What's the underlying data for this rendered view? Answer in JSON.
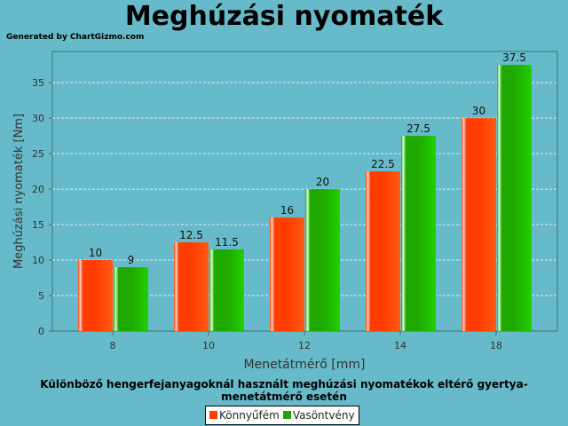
{
  "chart_data": {
    "type": "bar",
    "title": "Meghúzási nyomaték",
    "generated_by": "Generated by ChartGizmo.com",
    "xlabel": "Menetátmérő [mm]",
    "ylabel": "Meghúzási nyomaték [Nm]",
    "caption": "Különböző hengerfejanyagoknál használt meghúzási nyomatékok eltérő gyertya-menetátmérő esetén",
    "categories": [
      "8",
      "10",
      "12",
      "14",
      "18"
    ],
    "series": [
      {
        "name": "Könnyűfém",
        "color": "#ff3c00",
        "values": [
          10,
          12.5,
          16,
          22.5,
          30
        ]
      },
      {
        "name": "Vasöntvény",
        "color": "#1ea800",
        "values": [
          9,
          11.5,
          20,
          27.5,
          37.5
        ]
      }
    ],
    "yticks": [
      0,
      5,
      10,
      15,
      20,
      25,
      30,
      35
    ],
    "ylim": [
      0,
      39.4
    ],
    "grid": true,
    "legend": "bottom"
  }
}
